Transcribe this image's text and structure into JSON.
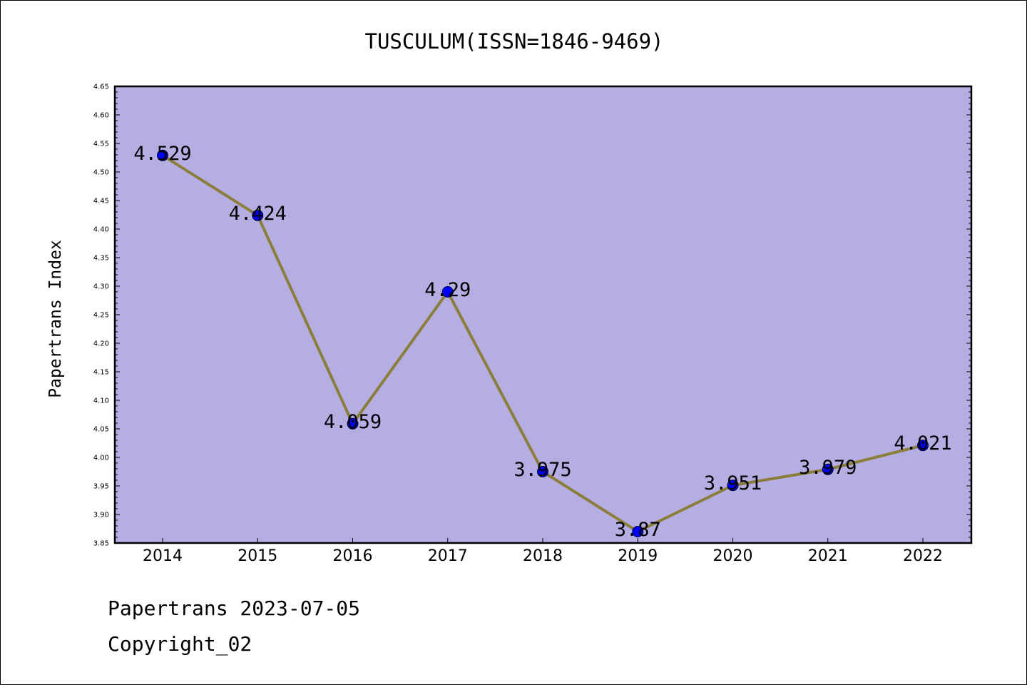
{
  "chart_data": {
    "type": "line",
    "title": "TUSCULUM(ISSN=1846-9469)",
    "xlabel": "",
    "ylabel": "Papertrans Index",
    "categories": [
      "2014",
      "2015",
      "2016",
      "2017",
      "2018",
      "2019",
      "2020",
      "2021",
      "2022"
    ],
    "series": [
      {
        "values": [
          4.529,
          4.424,
          4.059,
          4.29,
          3.975,
          3.87,
          3.951,
          3.979,
          4.021
        ],
        "labels": [
          "4.529",
          "4.424",
          "4.059",
          "4.29",
          "3.975",
          "3.87",
          "3.951",
          "3.979",
          "4.021"
        ],
        "line_color": "#8b7d3a",
        "marker_color": "#0000ff"
      }
    ],
    "ylim": [
      3.85,
      4.65
    ],
    "yticks": [
      "3.85",
      "3.90",
      "3.95",
      "4.00",
      "4.05",
      "4.10",
      "4.15",
      "4.20",
      "4.25",
      "4.30",
      "4.35",
      "4.40",
      "4.45",
      "4.50",
      "4.55",
      "4.60",
      "4.65"
    ],
    "plot_background": "#b5aee3",
    "grid": false,
    "legend": "none"
  },
  "footer": {
    "date_line": "Papertrans 2023-07-05",
    "copyright_line": "Copyright_02"
  }
}
